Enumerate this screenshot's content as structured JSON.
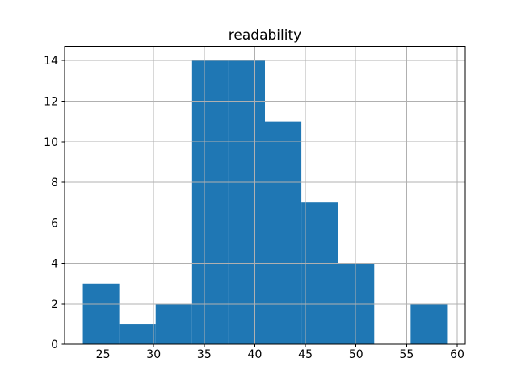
{
  "chart_data": {
    "type": "bar",
    "subtype": "histogram",
    "title": "readability",
    "xlabel": "",
    "ylabel": "",
    "bin_edges": [
      23,
      26.6,
      30.2,
      33.8,
      37.4,
      41,
      44.6,
      48.2,
      51.8,
      55.4,
      59
    ],
    "counts": [
      3,
      1,
      2,
      14,
      14,
      11,
      7,
      4,
      0,
      2
    ],
    "xticks": [
      25,
      30,
      35,
      40,
      45,
      50,
      55,
      60
    ],
    "yticks": [
      0,
      2,
      4,
      6,
      8,
      10,
      12,
      14
    ],
    "xlim": [
      21.2,
      60.8
    ],
    "ylim": [
      0,
      14.7
    ],
    "grid": true,
    "grid_above_bars": true,
    "legend": "none",
    "bar_color": "#1f77b4",
    "grid_color": "#b0b0b0",
    "spine_color": "#000000",
    "background_color": "#ffffff"
  }
}
